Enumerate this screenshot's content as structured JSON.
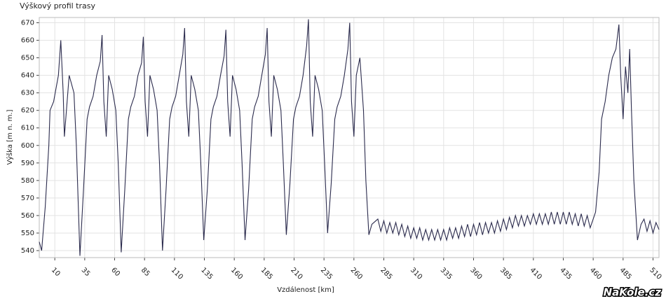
{
  "chart_data": {
    "type": "line",
    "title": "Výškový profil trasy",
    "x_label": "Vzdálenost [km]",
    "y_label": "Výška [m n. m.]",
    "watermark": "NaKole.cz",
    "xlim": [
      -3,
      515
    ],
    "ylim": [
      536,
      673
    ],
    "xticks": [
      10,
      35,
      60,
      85,
      110,
      135,
      160,
      185,
      210,
      235,
      260,
      285,
      310,
      335,
      360,
      385,
      410,
      435,
      460,
      485,
      510
    ],
    "yticks": [
      540,
      550,
      560,
      570,
      580,
      590,
      600,
      610,
      620,
      630,
      640,
      650,
      660,
      670
    ],
    "grid": true,
    "series": [
      {
        "name": "Výška",
        "color": "#2b2b4d",
        "x": [
          -3,
          -1,
          2,
          5,
          6,
          9,
          13,
          15,
          17,
          18,
          22,
          26,
          28,
          31,
          34,
          37,
          39,
          42,
          45,
          48,
          49.5,
          51,
          53,
          55,
          58,
          61,
          63,
          65.5,
          68.5,
          71.5,
          73.5,
          76.5,
          79.5,
          82.5,
          84,
          85.5,
          87.5,
          89.5,
          92.5,
          95.5,
          97.5,
          100,
          103,
          106,
          108,
          111,
          114,
          117,
          118.5,
          120,
          122,
          124,
          127,
          130,
          132,
          134.5,
          137.5,
          140.5,
          142.5,
          145.5,
          148.5,
          151.5,
          153,
          154.5,
          156.5,
          158.5,
          161.5,
          164.5,
          166.5,
          169,
          172,
          175,
          177,
          180,
          183,
          186,
          187.5,
          189,
          191,
          193,
          196,
          199,
          201,
          203.5,
          206.5,
          209.5,
          211.5,
          214.5,
          217.5,
          220.5,
          222,
          223.5,
          225.5,
          227.5,
          230.5,
          233.5,
          235.5,
          238,
          241,
          244,
          246,
          249,
          252,
          255,
          256.5,
          258,
          260,
          262,
          265,
          268,
          270,
          272.5,
          275,
          280,
          282.5,
          285,
          287.5,
          290,
          292.5,
          295,
          297.5,
          300,
          302.5,
          305,
          307.5,
          310,
          312.5,
          315,
          317.5,
          320,
          322.5,
          325,
          327.5,
          330,
          332.5,
          335,
          337.5,
          340,
          342.5,
          345,
          347.5,
          350,
          352.5,
          355,
          357.5,
          360,
          362.5,
          365,
          367.5,
          370,
          372.5,
          375,
          377.5,
          380,
          382.5,
          385,
          387.5,
          390,
          392.5,
          395,
          397.5,
          400,
          402.5,
          405,
          407.5,
          410,
          412.5,
          415,
          417.5,
          420,
          422.5,
          425,
          427.5,
          430,
          432.5,
          435,
          437.5,
          440,
          442.5,
          445,
          447.5,
          450,
          452.5,
          455,
          457.5,
          460,
          462,
          465,
          467,
          470,
          473,
          476,
          479,
          481.5,
          483,
          485,
          487,
          489,
          490.5,
          492,
          494,
          497,
          500,
          502.5,
          505,
          507.5,
          510,
          512.5,
          515
        ],
        "values": [
          545,
          540,
          565,
          600,
          620,
          625,
          640,
          660,
          630,
          605,
          640,
          630,
          600,
          537,
          575,
          615,
          622,
          628,
          640,
          648,
          663,
          625,
          605,
          640,
          632,
          620,
          590,
          539,
          575,
          615,
          622,
          628,
          640,
          647,
          662,
          625,
          605,
          640,
          632,
          620,
          590,
          540,
          575,
          615,
          622,
          628,
          640,
          652,
          667,
          625,
          605,
          640,
          632,
          620,
          590,
          546,
          575,
          615,
          622,
          628,
          640,
          651,
          666,
          625,
          605,
          640,
          632,
          620,
          590,
          546,
          575,
          615,
          622,
          628,
          640,
          652,
          667,
          625,
          605,
          640,
          632,
          620,
          590,
          549,
          578,
          615,
          622,
          628,
          640,
          657,
          672,
          625,
          605,
          640,
          632,
          620,
          590,
          550,
          578,
          615,
          622,
          628,
          640,
          655,
          670,
          625,
          605,
          640,
          650,
          620,
          580,
          549,
          555,
          558,
          551,
          557,
          550,
          556,
          550,
          556,
          549,
          555,
          548,
          554,
          547,
          553,
          547,
          553,
          546,
          552,
          546,
          552,
          546,
          552,
          546,
          552,
          546,
          553,
          547,
          553,
          547,
          554,
          548,
          555,
          548,
          555,
          549,
          556,
          549,
          556,
          550,
          556,
          550,
          557,
          551,
          558,
          552,
          559,
          553,
          560,
          554,
          560,
          554,
          560,
          555,
          561,
          555,
          561,
          555,
          561,
          555,
          562,
          555,
          562,
          555,
          562,
          555,
          562,
          555,
          561,
          554,
          561,
          554,
          560,
          553,
          558,
          562,
          585,
          615,
          625,
          640,
          650,
          655,
          669,
          640,
          615,
          645,
          630,
          655,
          620,
          580,
          546,
          555,
          558,
          551,
          557,
          550,
          556,
          552
        ]
      }
    ]
  }
}
